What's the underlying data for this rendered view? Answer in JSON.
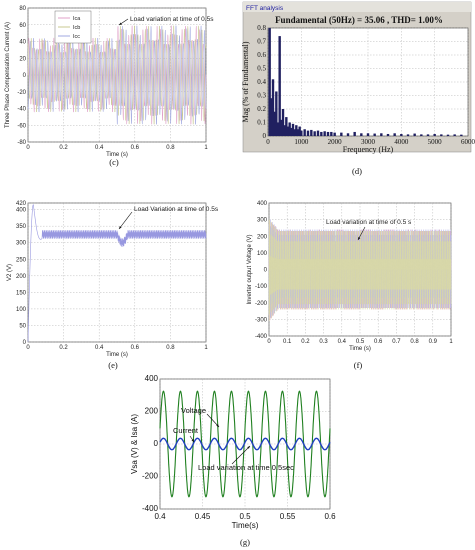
{
  "chart_data": [
    {
      "id": "c",
      "type": "line",
      "caption": "(c)",
      "xlabel": "Time (s)",
      "ylabel": "Three Phase Compensation Current (A)",
      "xlim": [
        0,
        1
      ],
      "ylim": [
        -80,
        80
      ],
      "x_ticks": [
        0,
        0.2,
        0.4,
        0.6,
        0.8,
        1
      ],
      "y_ticks": [
        -80,
        -60,
        -40,
        -20,
        0,
        20,
        40,
        60,
        80
      ],
      "legend": {
        "placement": "top-left",
        "entries": [
          "Ica",
          "Icb",
          "Icc"
        ]
      },
      "annotation": {
        "text": "Load variation at time of 0.5s",
        "x": 0.5
      },
      "series": [
        {
          "name": "Ica",
          "amplitude_before": 45,
          "amplitude_after": 60,
          "color": "#e0a0c8"
        },
        {
          "name": "Icb",
          "amplitude_before": 45,
          "amplitude_after": 60,
          "color": "#c8c890"
        },
        {
          "name": "Icc",
          "amplitude_before": 45,
          "amplitude_after": 60,
          "color": "#a0a8e0"
        }
      ],
      "load_change_time": 0.5,
      "grid": true
    },
    {
      "id": "d",
      "type": "bar",
      "caption": "(d)",
      "window_title": "FFT analysis",
      "title": "Fundamental (50Hz) = 35.06 , THD= 1.00%",
      "xlabel": "Frequency (Hz)",
      "ylabel": "Mag (% of Fundamental)",
      "xlim": [
        0,
        6000
      ],
      "ylim": [
        0,
        0.8
      ],
      "x_ticks": [
        0,
        1000,
        2000,
        3000,
        4000,
        5000,
        6000
      ],
      "y_ticks": [
        0,
        0.1,
        0.2,
        0.3,
        0.4,
        0.5,
        0.6,
        0.7,
        0.8
      ],
      "bars": [
        {
          "f": 50,
          "v": 0.8
        },
        {
          "f": 100,
          "v": 0.28
        },
        {
          "f": 150,
          "v": 0.42
        },
        {
          "f": 200,
          "v": 0.18
        },
        {
          "f": 250,
          "v": 0.33
        },
        {
          "f": 300,
          "v": 0.1
        },
        {
          "f": 350,
          "v": 0.74
        },
        {
          "f": 400,
          "v": 0.12
        },
        {
          "f": 450,
          "v": 0.2
        },
        {
          "f": 500,
          "v": 0.08
        },
        {
          "f": 550,
          "v": 0.14
        },
        {
          "f": 600,
          "v": 0.07
        },
        {
          "f": 650,
          "v": 0.1
        },
        {
          "f": 700,
          "v": 0.06
        },
        {
          "f": 750,
          "v": 0.09
        },
        {
          "f": 800,
          "v": 0.05
        },
        {
          "f": 850,
          "v": 0.08
        },
        {
          "f": 900,
          "v": 0.05
        },
        {
          "f": 950,
          "v": 0.07
        },
        {
          "f": 1000,
          "v": 0.04
        },
        {
          "f": 1100,
          "v": 0.05
        },
        {
          "f": 1200,
          "v": 0.04
        },
        {
          "f": 1300,
          "v": 0.045
        },
        {
          "f": 1400,
          "v": 0.035
        },
        {
          "f": 1500,
          "v": 0.04
        },
        {
          "f": 1600,
          "v": 0.03
        },
        {
          "f": 1700,
          "v": 0.035
        },
        {
          "f": 1800,
          "v": 0.03
        },
        {
          "f": 1900,
          "v": 0.03
        },
        {
          "f": 2000,
          "v": 0.025
        },
        {
          "f": 2200,
          "v": 0.025
        },
        {
          "f": 2400,
          "v": 0.02
        },
        {
          "f": 2600,
          "v": 0.03
        },
        {
          "f": 2800,
          "v": 0.02
        },
        {
          "f": 3000,
          "v": 0.02
        },
        {
          "f": 3200,
          "v": 0.018
        },
        {
          "f": 3400,
          "v": 0.02
        },
        {
          "f": 3600,
          "v": 0.015
        },
        {
          "f": 3800,
          "v": 0.02
        },
        {
          "f": 4000,
          "v": 0.015
        },
        {
          "f": 4200,
          "v": 0.012
        },
        {
          "f": 4400,
          "v": 0.018
        },
        {
          "f": 4600,
          "v": 0.012
        },
        {
          "f": 4800,
          "v": 0.012
        },
        {
          "f": 5000,
          "v": 0.015
        },
        {
          "f": 5200,
          "v": 0.012
        },
        {
          "f": 5400,
          "v": 0.01
        },
        {
          "f": 5600,
          "v": 0.012
        },
        {
          "f": 5800,
          "v": 0.01
        }
      ],
      "bar_color": "#202060",
      "grid": true
    },
    {
      "id": "e",
      "type": "line",
      "caption": "(e)",
      "xlabel": "Time (s)",
      "ylabel": "V2  (V)",
      "xlim": [
        0,
        1
      ],
      "ylim": [
        0,
        420
      ],
      "x_ticks": [
        0,
        0.2,
        0.4,
        0.6,
        0.8,
        1
      ],
      "y_ticks": [
        0,
        50,
        100,
        150,
        200,
        250,
        300,
        350,
        400,
        420
      ],
      "annotation": {
        "text": "Load Variation at time of 0.5s",
        "x": 0.5
      },
      "steady_value": 325,
      "ripple": 12,
      "peak": {
        "x": 0.03,
        "y": 415
      },
      "dip": {
        "x": 0.52,
        "y": 300
      },
      "color": "#9898e0",
      "grid": true
    },
    {
      "id": "f",
      "type": "line",
      "caption": "(f)",
      "xlabel": "Time (s)",
      "ylabel": "Inverter output Voltage (V)",
      "xlim": [
        0,
        1
      ],
      "ylim": [
        -400,
        400
      ],
      "x_ticks": [
        0,
        0.1,
        0.2,
        0.3,
        0.4,
        0.5,
        0.6,
        0.7,
        0.8,
        0.9,
        1
      ],
      "y_ticks": [
        -400,
        -300,
        -200,
        -100,
        0,
        100,
        200,
        300,
        400
      ],
      "annotation": {
        "text": "Load variation at time of 0.5 s",
        "x": 0.5
      },
      "envelope": 240,
      "colors": [
        "#e8a8c0",
        "#b8b8e8",
        "#d8d8a8"
      ],
      "grid": true
    },
    {
      "id": "g",
      "type": "line",
      "caption": "(g)",
      "xlabel": "Time(s)",
      "ylabel": "Vsa (V) & Isa (A)",
      "xlim": [
        0.4,
        0.6
      ],
      "ylim": [
        -400,
        400
      ],
      "x_ticks": [
        0.4,
        0.45,
        0.5,
        0.55,
        0.6
      ],
      "y_ticks": [
        -400,
        -200,
        0,
        200,
        400
      ],
      "series": [
        {
          "name": "Voltage",
          "amplitude": 325,
          "frequency_hz": 50,
          "color": "#208020"
        },
        {
          "name": "Current",
          "amplitude": 35,
          "frequency_hz": 50,
          "color": "#2040c0"
        }
      ],
      "annotations": [
        {
          "text": "Voltage",
          "target": "Voltage"
        },
        {
          "text": "Current",
          "target": "Current"
        },
        {
          "text": "Load variation at time 0.5sec",
          "x": 0.5
        }
      ],
      "grid": true
    }
  ]
}
